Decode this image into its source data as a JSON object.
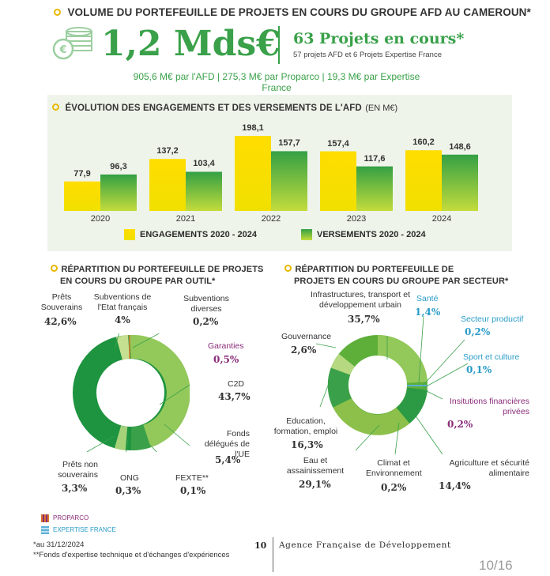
{
  "header": {
    "title": "VOLUME DU PORTEFEUILLE DE PROJETS EN COURS DU GROUPE AFD AU CAMEROUN*",
    "total": "1,2 Mds€",
    "projects": "63 Projets en cours*",
    "projects_detail": "57 projets AFD et 6 Projets Expertise France",
    "breakdown": "905,6 M€ par l'AFD | 275,3 M€ par Proparco | 19,3 M€ par Expertise France"
  },
  "chart": {
    "title": "ÉVOLUTION DES ENGAGEMENTS ET DES VERSEMENTS DE L'AFD",
    "unit": "(EN M€)",
    "legend_engagements": "ENGAGEMENTS 2020 - 2024",
    "legend_versements": "VERSEMENTS 2020 - 2024"
  },
  "chart_data": {
    "type": "bar",
    "categories": [
      "2020",
      "2021",
      "2022",
      "2023",
      "2024"
    ],
    "series": [
      {
        "name": "ENGAGEMENTS 2020 - 2024",
        "values": [
          77.9,
          137.2,
          198.1,
          157.4,
          160.2
        ],
        "labels": [
          "77,9",
          "137,2",
          "198,1",
          "157,4",
          "160,2"
        ]
      },
      {
        "name": "VERSEMENTS 2020 - 2024",
        "values": [
          96.3,
          103.4,
          157.7,
          117.6,
          148.6
        ],
        "labels": [
          "96,3",
          "103,4",
          "157,7",
          "117,6",
          "148,6"
        ]
      }
    ],
    "ylim": [
      0,
      198.1
    ],
    "colors": {
      "engagements": "#f5d800",
      "versements": "#3aa14a"
    }
  },
  "outil": {
    "title_line1": "RÉPARTITION DU PORTEFEUILLE DE PROJETS",
    "title_line2": "EN COURS DU GROUPE PAR OUTIL*",
    "items": [
      {
        "label": "Prêts Souverains",
        "value": "42,6%"
      },
      {
        "label": "Subventions de l'Etat français",
        "value": "4%"
      },
      {
        "label": "Subventions diverses",
        "value": "0,2%"
      },
      {
        "label": "Garanties",
        "value": "0,5%"
      },
      {
        "label": "C2D",
        "value": "43,7%"
      },
      {
        "label": "Fonds délégués de l'UE",
        "value": "5,4%"
      },
      {
        "label": "FEXTE**",
        "value": "0,1%"
      },
      {
        "label": "ONG",
        "value": "0,3%"
      },
      {
        "label": "Prêts non souverains",
        "value": "3,3%"
      }
    ]
  },
  "secteur": {
    "title_line1": "RÉPARTITION DU PORTEFEUILLE DE",
    "title_line2": "PROJETS EN COURS DU GROUPE PAR SECTEUR*",
    "items": [
      {
        "label": "Infrastructures, transport et développement urbain",
        "value": "35,7%"
      },
      {
        "label": "Santé",
        "value": "1,4%"
      },
      {
        "label": "Secteur productif",
        "value": "0,2%"
      },
      {
        "label": "Sport et culture",
        "value": "0,1%"
      },
      {
        "label": "Insitutions financières privées",
        "value": "0,2%"
      },
      {
        "label": "Agriculture et sécurité alimentaire",
        "value": "14,4%"
      },
      {
        "label": "Climat et Environnement",
        "value": "0,2%"
      },
      {
        "label": "Eau et assainissement",
        "value": "29,1%"
      },
      {
        "label": "Education, formation, emploi",
        "value": "16,3%"
      },
      {
        "label": "Gouvernance",
        "value": "2,6%"
      }
    ]
  },
  "legend_small": {
    "proparco": "PROPARCO",
    "expertise": "EXPERTISE FRANCE"
  },
  "footer": {
    "note1": "*au 31/12/2024",
    "note2": "**Fonds d'expertise technique et d'échanges d'expériences",
    "page_number": "10",
    "agency": "Agence Française de Développement",
    "page_counter": "10/16"
  }
}
